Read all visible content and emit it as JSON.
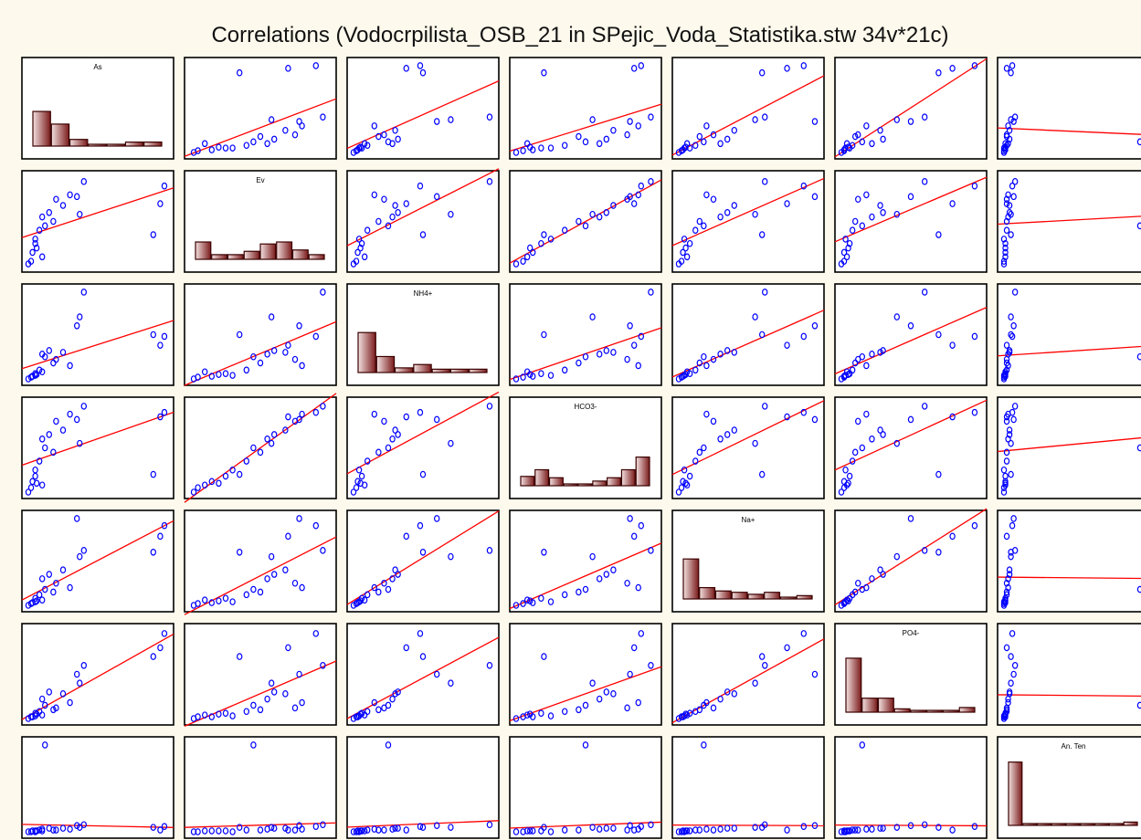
{
  "chart_data": {
    "type": "scatter",
    "title": "Correlations (Vodocrpilista_OSB_21 in SPejic_Voda_Statistika.stw 34v*21c)",
    "variables": [
      "As",
      "Ev",
      "NH4+",
      "HCO3-",
      "Na+",
      "PO4-",
      "An. Ten"
    ],
    "grid": false,
    "legend": "none",
    "colors": {
      "points": "#0000ff",
      "fit_line": "#ff0000",
      "bar_light": "#f3e1e1",
      "bar_dark": "#7a1a1a",
      "panel_border": "#000000",
      "background": "#fdf9ec"
    },
    "histograms": {
      "As": [
        0.52,
        0.33,
        0.1,
        0.02,
        0.0,
        0.06,
        0.06
      ],
      "Ev": [
        0.26,
        0.07,
        0.07,
        0.12,
        0.23,
        0.26,
        0.14,
        0.07
      ],
      "NH4+": [
        0.6,
        0.24,
        0.07,
        0.12,
        0.05,
        0.05,
        0.05
      ],
      "HCO3-": [
        0.14,
        0.24,
        0.12,
        0.02,
        0.02,
        0.07,
        0.12,
        0.24,
        0.43
      ],
      "Na+": [
        0.6,
        0.17,
        0.12,
        0.1,
        0.07,
        0.1,
        0.02,
        0.05
      ],
      "PO4-": [
        0.81,
        0.21,
        0.21,
        0.05,
        0.0,
        0.0,
        0.0,
        0.07
      ],
      "An. Ten": [
        0.95,
        0.0,
        0.0,
        0.0,
        0.0,
        0.0,
        0.0,
        0.0,
        0.05
      ]
    },
    "points": {
      "As": [
        0.9,
        0.95,
        0.1,
        0.02,
        0.06,
        0.98,
        0.15,
        0.2,
        0.4,
        0.37,
        0.3,
        0.1,
        0.05,
        0.0,
        0.03,
        0.35,
        0.18,
        0.25,
        0.05,
        0.08,
        0.12
      ],
      "Ev": [
        0.35,
        0.7,
        0.55,
        0.05,
        0.2,
        0.9,
        0.6,
        0.75,
        0.95,
        0.58,
        0.8,
        0.1,
        0.3,
        0.02,
        0.15,
        0.78,
        0.5,
        0.68,
        0.25,
        0.4,
        0.45
      ],
      "NH4+": [
        0.5,
        0.38,
        0.28,
        0.02,
        0.05,
        0.48,
        0.32,
        0.22,
        0.98,
        0.7,
        0.15,
        0.08,
        0.04,
        0.0,
        0.03,
        0.6,
        0.18,
        0.3,
        0.06,
        0.1,
        0.25
      ],
      "HCO3-": [
        0.2,
        0.85,
        0.6,
        0.05,
        0.1,
        0.9,
        0.65,
        0.8,
        0.97,
        0.55,
        0.88,
        0.08,
        0.25,
        0.0,
        0.12,
        0.82,
        0.45,
        0.7,
        0.18,
        0.35,
        0.5
      ],
      "Na+": [
        0.6,
        0.78,
        0.3,
        0.02,
        0.05,
        0.9,
        0.35,
        0.25,
        0.62,
        0.55,
        0.2,
        0.06,
        0.04,
        0.0,
        0.03,
        0.98,
        0.15,
        0.4,
        0.08,
        0.12,
        0.18
      ],
      "PO4-": [
        0.7,
        0.8,
        0.22,
        0.02,
        0.05,
        0.96,
        0.3,
        0.12,
        0.6,
        0.4,
        0.18,
        0.04,
        0.03,
        0.0,
        0.02,
        0.5,
        0.1,
        0.28,
        0.06,
        0.08,
        0.15
      ],
      "An. Ten": [
        0.05,
        0.02,
        0.03,
        0.0,
        0.01,
        0.06,
        0.04,
        0.02,
        0.08,
        0.05,
        0.03,
        0.01,
        0.0,
        0.0,
        0.01,
        0.07,
        0.02,
        0.04,
        0.01,
        0.02,
        0.98
      ]
    }
  }
}
